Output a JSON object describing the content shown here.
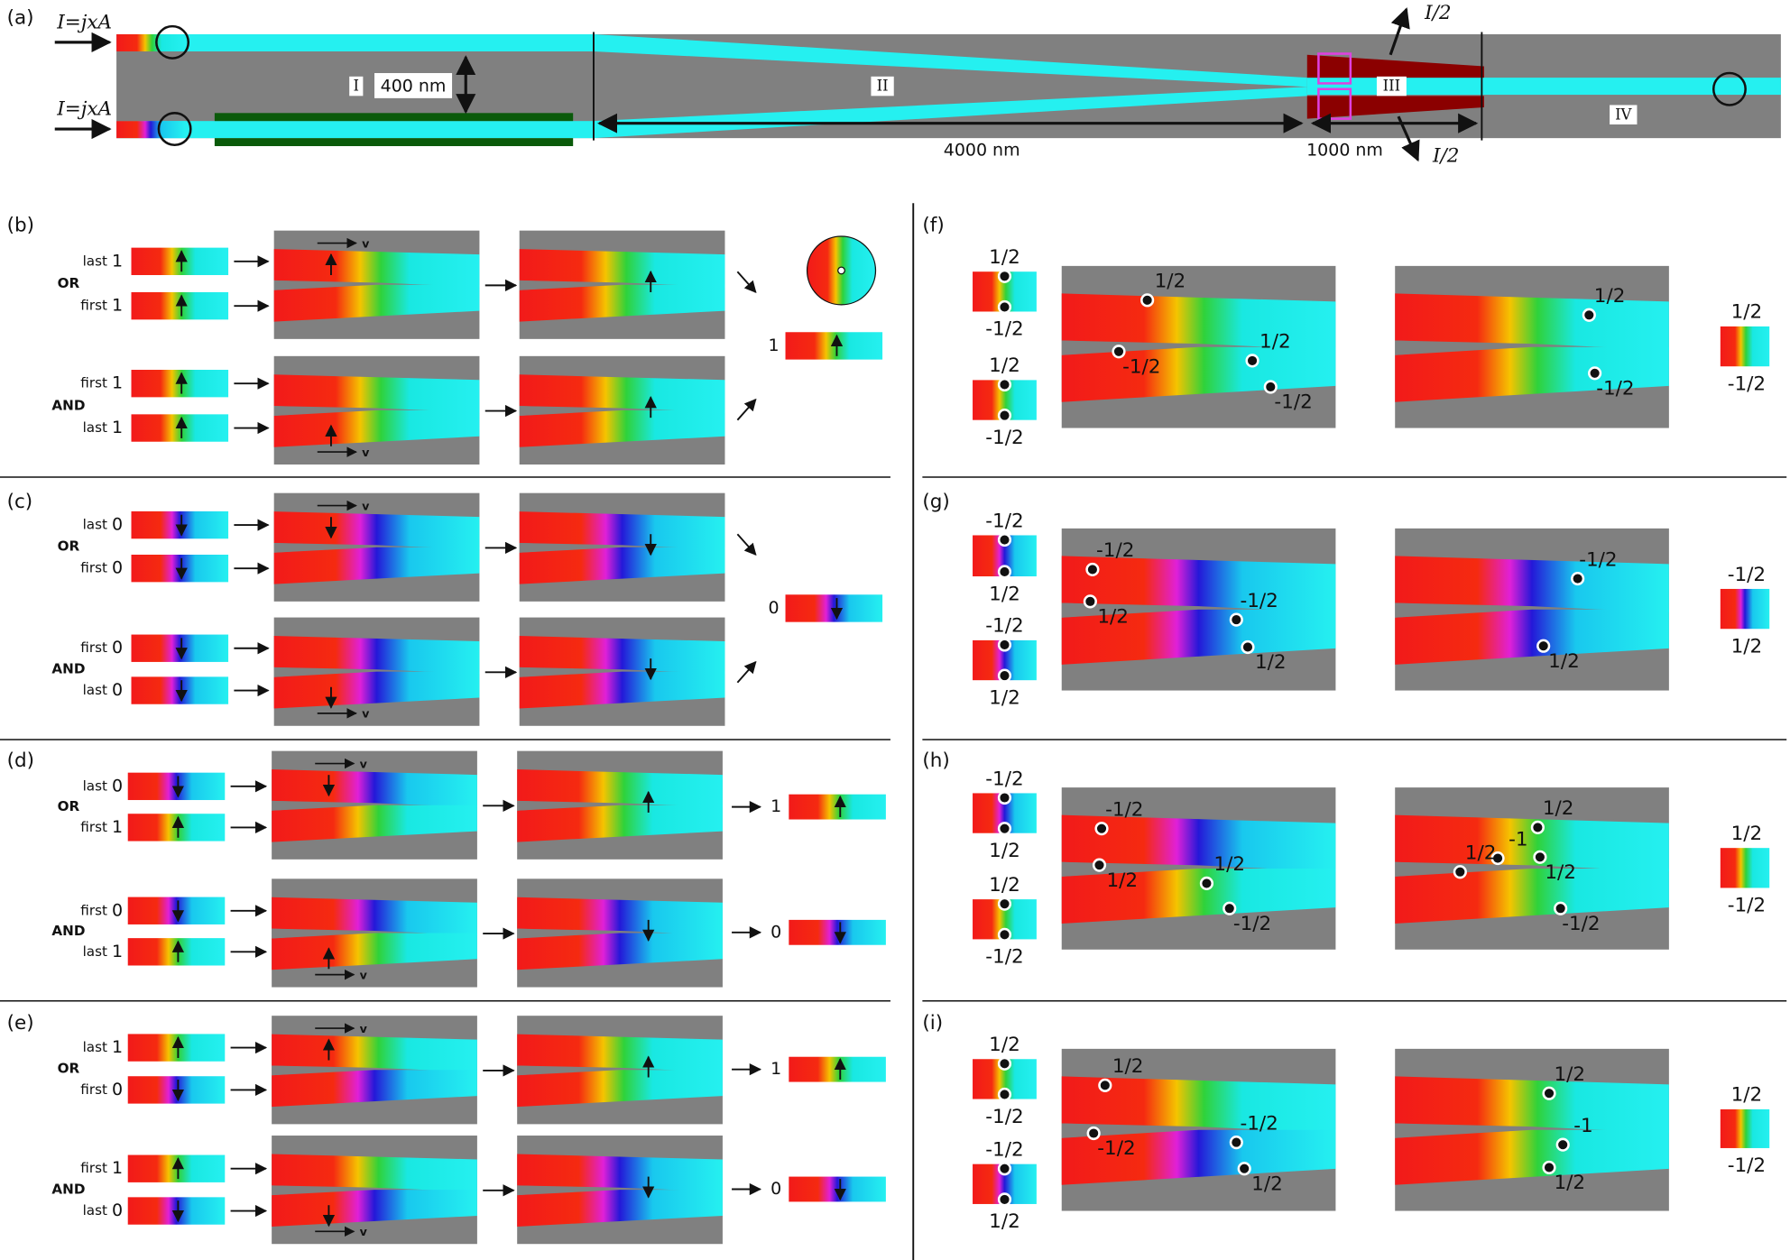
{
  "panel_a": {
    "label": "(a)",
    "current_in": [
      "I=jxA",
      "I=jxA"
    ],
    "current_out": [
      "I/2",
      "I/2"
    ],
    "regions": [
      "I",
      "II",
      "III",
      "IV"
    ],
    "width_label": "400 nm",
    "length_labels": [
      "4000 nm",
      "1000 nm"
    ]
  },
  "logic_panels": [
    {
      "label": "(b)",
      "velocity": "v",
      "shared_output": 1,
      "gates": [
        {
          "name": "OR",
          "inputs": [
            {
              "word": "last",
              "bit": 1
            },
            {
              "word": "first",
              "bit": 1
            }
          ]
        },
        {
          "name": "AND",
          "inputs": [
            {
              "word": "first",
              "bit": 1
            },
            {
              "word": "last",
              "bit": 1
            }
          ]
        }
      ]
    },
    {
      "label": "(c)",
      "velocity": "v",
      "shared_output": 0,
      "gates": [
        {
          "name": "OR",
          "inputs": [
            {
              "word": "last",
              "bit": 0
            },
            {
              "word": "first",
              "bit": 0
            }
          ]
        },
        {
          "name": "AND",
          "inputs": [
            {
              "word": "first",
              "bit": 0
            },
            {
              "word": "last",
              "bit": 0
            }
          ]
        }
      ]
    },
    {
      "label": "(d)",
      "velocity": "v",
      "gates": [
        {
          "name": "OR",
          "inputs": [
            {
              "word": "last",
              "bit": 0
            },
            {
              "word": "first",
              "bit": 1
            }
          ],
          "output": 1
        },
        {
          "name": "AND",
          "inputs": [
            {
              "word": "first",
              "bit": 0
            },
            {
              "word": "last",
              "bit": 1
            }
          ],
          "output": 0
        }
      ]
    },
    {
      "label": "(e)",
      "velocity": "v",
      "gates": [
        {
          "name": "OR",
          "inputs": [
            {
              "word": "last",
              "bit": 1
            },
            {
              "word": "first",
              "bit": 0
            }
          ],
          "output": 1
        },
        {
          "name": "AND",
          "inputs": [
            {
              "word": "first",
              "bit": 1
            },
            {
              "word": "last",
              "bit": 0
            }
          ],
          "output": 0
        }
      ]
    }
  ],
  "charge_panels": [
    {
      "label": "(f)",
      "inputs": [
        [
          "1/2",
          "-1/2"
        ],
        [
          "1/2",
          "-1/2"
        ]
      ],
      "before": [
        "1/2",
        "-1/2",
        "1/2",
        "-1/2"
      ],
      "after": [
        "1/2",
        "-1/2"
      ],
      "output": [
        "1/2",
        "-1/2"
      ]
    },
    {
      "label": "(g)",
      "inputs": [
        [
          "-1/2",
          "1/2"
        ],
        [
          "-1/2",
          "1/2"
        ]
      ],
      "before": [
        "-1/2",
        "1/2",
        "-1/2",
        "1/2"
      ],
      "after": [
        "-1/2",
        "1/2"
      ],
      "output": [
        "-1/2",
        "1/2"
      ]
    },
    {
      "label": "(h)",
      "inputs": [
        [
          "-1/2",
          "1/2"
        ],
        [
          "1/2",
          "-1/2"
        ]
      ],
      "before": [
        "-1/2",
        "1/2",
        "1/2",
        "-1/2"
      ],
      "after": [
        "1/2",
        "-1",
        "1/2",
        "1/2",
        "-1/2"
      ],
      "output": [
        "1/2",
        "-1/2"
      ]
    },
    {
      "label": "(i)",
      "inputs": [
        [
          "1/2",
          "-1/2"
        ],
        [
          "-1/2",
          "1/2"
        ]
      ],
      "before": [
        "1/2",
        "-1/2",
        "-1/2",
        "1/2"
      ],
      "after": [
        "1/2",
        "-1",
        "1/2"
      ],
      "output": [
        "1/2",
        "-1/2"
      ]
    }
  ]
}
